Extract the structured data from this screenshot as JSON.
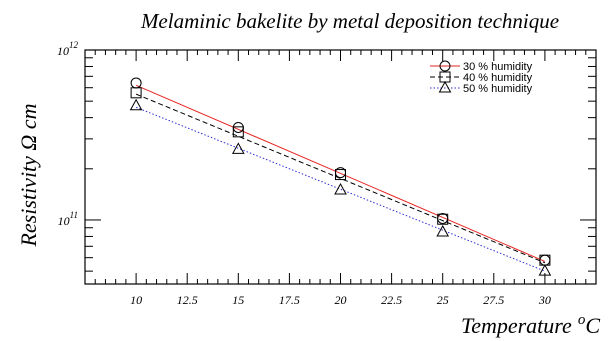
{
  "chart_data": {
    "type": "line",
    "title": "Melaminic bakelite by metal deposition technique",
    "xlabel": "Temperature",
    "xlabel_sup": "o",
    "xlabel_unit": "C",
    "ylabel": "Resistivity Ω cm",
    "x_ticks": [
      "10",
      "12.5",
      "15",
      "17.5",
      "20",
      "22.5",
      "25",
      "27.5",
      "30"
    ],
    "y_tick_labels": [
      {
        "base": "10",
        "exp": "12",
        "value": 1000000000000.0
      },
      {
        "base": "10",
        "exp": "11",
        "value": 100000000000.0
      }
    ],
    "xlim": [
      7.5,
      32.5
    ],
    "ylim": [
      42000000000.0,
      1000000000000.0
    ],
    "y_scale": "log",
    "grid": false,
    "legend_position": "top-right",
    "series": [
      {
        "name": "30 % humidity",
        "color": "#e8231f",
        "marker": "circle",
        "line_style": "solid",
        "x": [
          10,
          15,
          20,
          25,
          30
        ],
        "y": [
          640000000000.0,
          350000000000.0,
          190000000000.0,
          102000000000.0,
          58000000000.0
        ],
        "fit": [
          [
            10,
            620000000000.0
          ],
          [
            30,
            57000000000.0
          ]
        ]
      },
      {
        "name": "40 % humidity",
        "color": "#000000",
        "marker": "square",
        "line_style": "dashed",
        "x": [
          10,
          15,
          20,
          25,
          30
        ],
        "y": [
          560000000000.0,
          330000000000.0,
          185000000000.0,
          101000000000.0,
          58000000000.0
        ],
        "fit": [
          [
            10,
            550000000000.0
          ],
          [
            30,
            56000000000.0
          ]
        ]
      },
      {
        "name": "50 % humidity",
        "color": "#2d2dd6",
        "marker": "triangle",
        "line_style": "dotted",
        "x": [
          10,
          15,
          20,
          25,
          30
        ],
        "y": [
          470000000000.0,
          260000000000.0,
          150000000000.0,
          85000000000.0,
          50000000000.0
        ],
        "fit": [
          [
            10,
            460000000000.0
          ],
          [
            30,
            50000000000.0
          ]
        ]
      }
    ]
  }
}
